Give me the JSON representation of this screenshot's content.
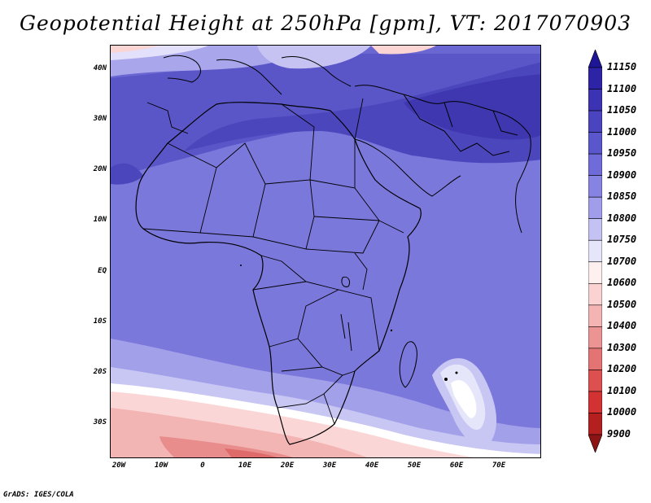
{
  "title": "Geopotential Height at 250hPa [gpm], VT: 2017070903",
  "credit": "GrADS: IGES/COLA",
  "map": {
    "lat_labels": [
      "40N",
      "30N",
      "20N",
      "10N",
      "EQ",
      "10S",
      "20S",
      "30S"
    ],
    "lon_labels": [
      "20W",
      "10W",
      "0",
      "10E",
      "20E",
      "30E",
      "40E",
      "50E",
      "60E",
      "70E"
    ]
  },
  "colorbar": {
    "levels": [
      "11150",
      "11100",
      "11050",
      "11000",
      "10950",
      "10900",
      "10850",
      "10800",
      "10750",
      "10700",
      "10600",
      "10500",
      "10400",
      "10300",
      "10200",
      "10100",
      "10000",
      "9900"
    ],
    "colors": [
      "#1e1696",
      "#2d23a6",
      "#3c33b4",
      "#4b44c0",
      "#5a57cc",
      "#6f6bd8",
      "#8683e2",
      "#a09eea",
      "#c4c2f2",
      "#e6e6fa",
      "#fff0f0",
      "#fbd2d2",
      "#f4b4b4",
      "#ec9494",
      "#e47474",
      "#dc5050",
      "#d23232",
      "#b42020",
      "#8c1414"
    ]
  }
}
